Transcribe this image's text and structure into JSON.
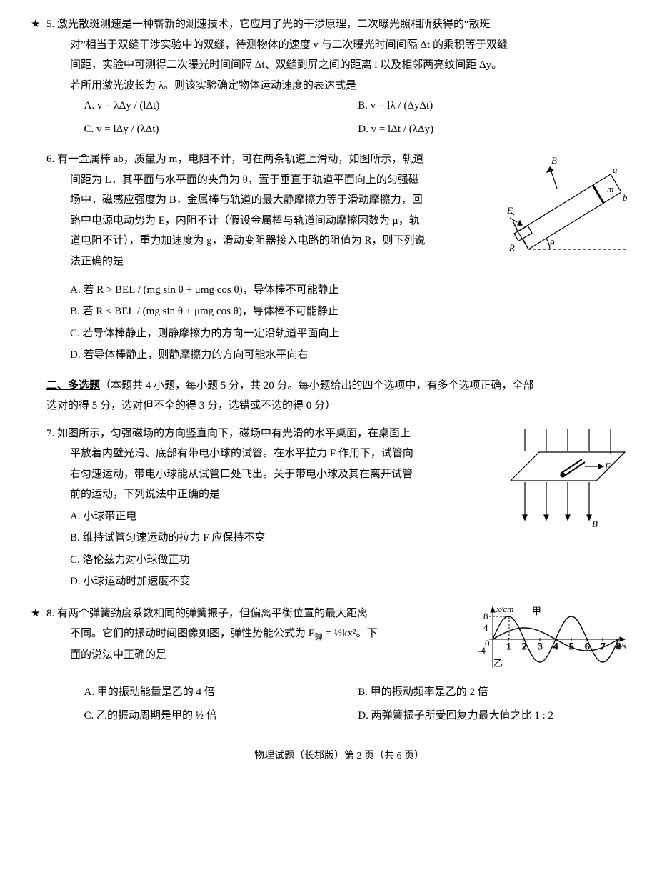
{
  "q5": {
    "num": "5.",
    "line1": "激光散斑测速是一种崭新的测速技术，它应用了光的干涉原理，二次曝光照相所获得的“散斑",
    "line2": "对”相当于双缝干涉实验中的双缝，待测物体的速度 v 与二次曝光时间间隔 Δt 的乘积等于双缝",
    "line3": "间距，实验中可测得二次曝光时间间隔 Δt、双缝到屏之间的距离 l 以及相邻两亮纹间距 Δy。",
    "line4": "若所用激光波长为 λ。则该实验确定物体运动速度的表达式是",
    "A": "A. v = λΔy / (lΔt)",
    "B": "B. v = lλ / (ΔyΔt)",
    "C": "C. v = lΔy / (λΔt)",
    "D": "D. v = lΔt / (λΔy)"
  },
  "q6": {
    "num": "6.",
    "line1": "有一金属棒 ab，质量为 m，电阻不计，可在两条轨道上滑动，如图所示，轨道",
    "line2": "间距为 L，其平面与水平面的夹角为 θ，置于垂直于轨道平面向上的匀强磁",
    "line3": "场中，磁感应强度为 B，金属棒与轨道的最大静摩擦力等于滑动摩擦力，回",
    "line4": "路中电源电动势为 E，内阻不计（假设金属棒与轨道间动摩擦因数为 μ，轨",
    "line5": "道电阻不计），重力加速度为 g，滑动变阻器接入电路的阻值为 R，则下列说",
    "line6": "法正确的是",
    "A": "A. 若 R > BEL / (mg sin θ + μmg cos θ)，导体棒不可能静止",
    "B": "B. 若 R < BEL / (mg sin θ + μmg cos θ)，导体棒不可能静止",
    "C": "C. 若导体棒静止，则静摩擦力的方向一定沿轨道平面向上",
    "D": "D. 若导体棒静止，则静摩擦力的方向可能水平向右",
    "fig": {
      "B": "B",
      "E": "E",
      "R": "R",
      "a": "a",
      "b": "b",
      "m": "m",
      "theta": "θ"
    }
  },
  "section2": {
    "title": "二、多选题",
    "titleRest": "（本题共 4 小题，每小题 5 分，共 20 分。每小题给出的四个选项中，有多个选项正确，全部",
    "sub": "选对的得 5 分，选对但不全的得 3 分，选错或不选的得 0 分）"
  },
  "q7": {
    "num": "7.",
    "line1": "如图所示，匀强磁场的方向竖直向下，磁场中有光滑的水平桌面，在桌面上",
    "line2": "平放着内壁光滑、底部有带电小球的试管。在水平拉力 F 作用下，试管向",
    "line3": "右匀速运动，带电小球能从试管口处飞出。关于带电小球及其在离开试管",
    "line4": "前的运动，下列说法中正确的是",
    "A": "A. 小球带正电",
    "B": "B. 维持试管匀速运动的拉力 F 应保持不变",
    "C": "C. 洛伦兹力对小球做正功",
    "D": "D. 小球运动时加速度不变",
    "fig": {
      "F": "F",
      "B": "B"
    }
  },
  "q8": {
    "num": "8.",
    "line1": "有两个弹簧劲度系数相同的弹簧振子，但偏离平衡位置的最大距离",
    "line2a": "不同。它们的振动时间图像如图，弹性势能公式为 E",
    "line2sub": "弹",
    "line2b": " = ½kx²。下",
    "line3": "面的说法中正确的是",
    "A": "A. 甲的振动能量是乙的 4 倍",
    "B": "B. 甲的振动频率是乙的 2 倍",
    "C": "C. 乙的振动周期是甲的 ½ 倍",
    "D": "D. 两弹簧振子所受回复力最大值之比 1 : 2",
    "fig": {
      "ylabel": "x/cm",
      "xlabel": "t/s",
      "jia": "甲",
      "yi": "乙",
      "ytick8": "8",
      "ytick4": "4",
      "ytickm4": "-4",
      "xticks": [
        "1",
        "2",
        "3",
        "4",
        "5",
        "6",
        "7",
        "8"
      ],
      "amp_jia": 8,
      "amp_yi": 4,
      "period_jia": 4,
      "period_yi": 8,
      "color": "#000",
      "bg": "#fff"
    }
  },
  "footer": "物理试题（长郡版）第 2 页（共 6 页）"
}
